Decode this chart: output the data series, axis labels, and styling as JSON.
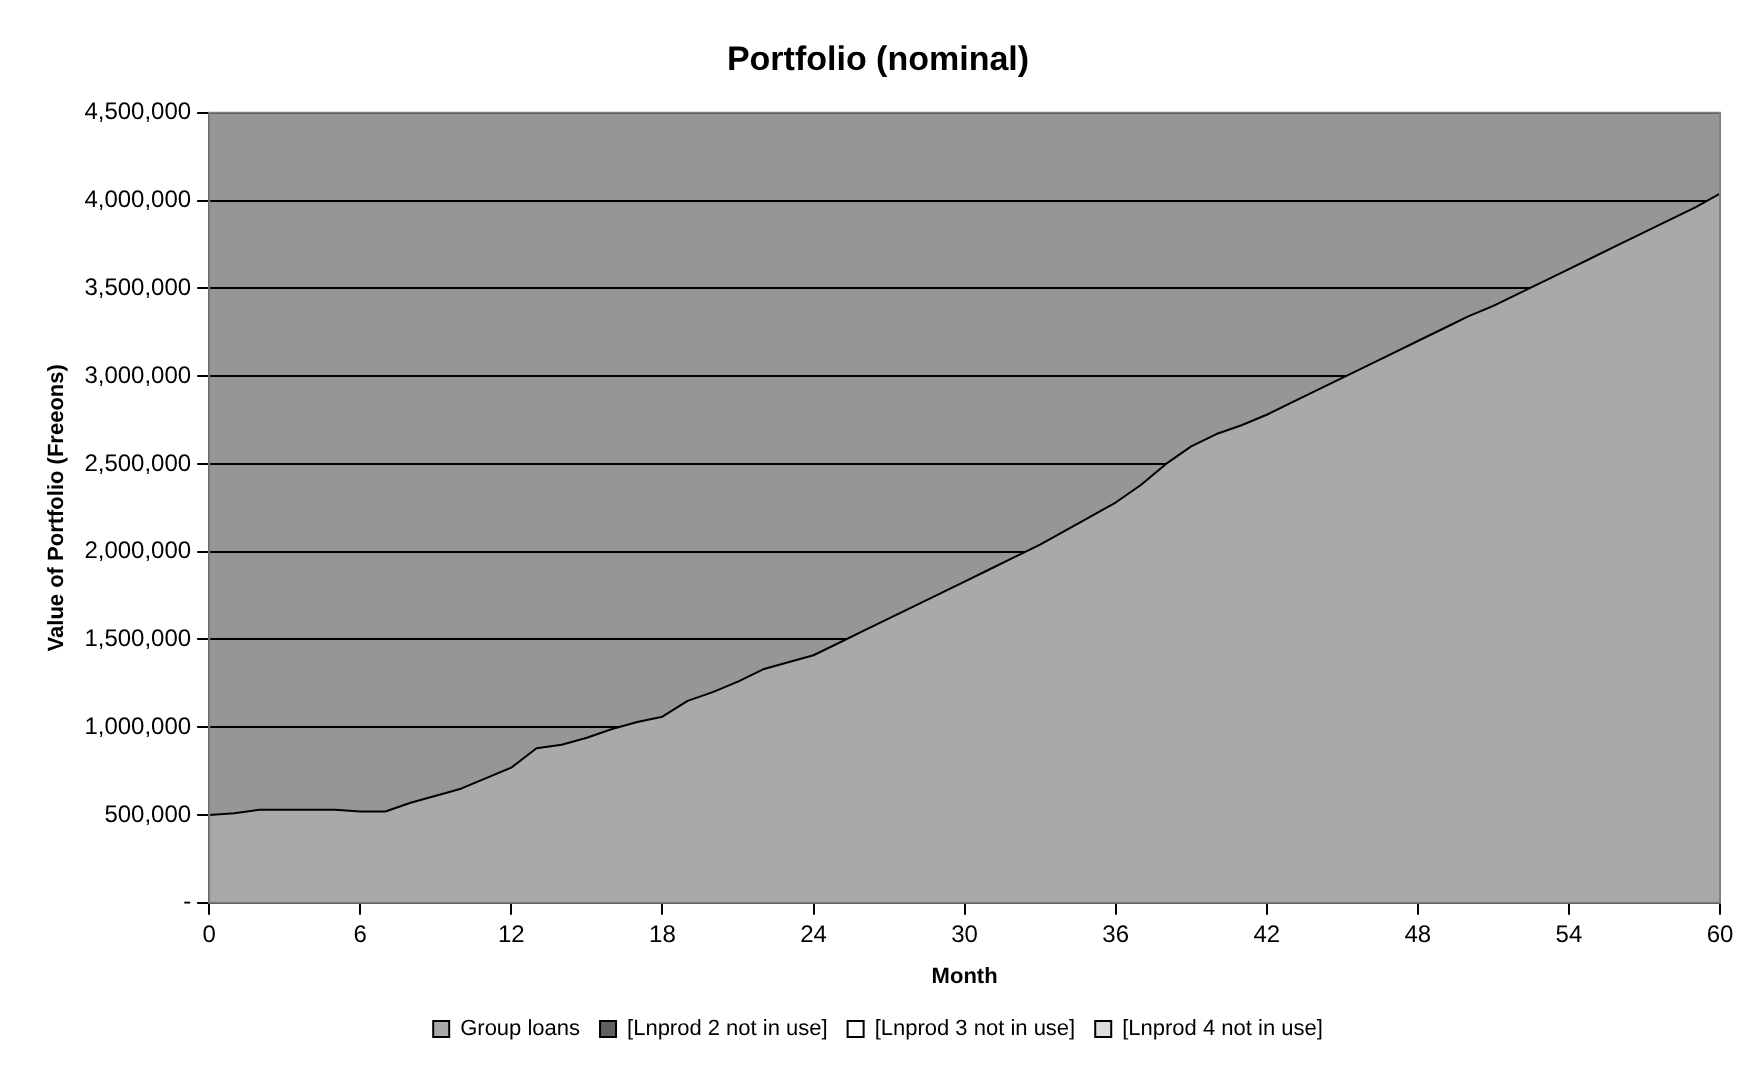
{
  "chart_data": {
    "type": "area",
    "title": "Portfolio (nominal)",
    "xlabel": "Month",
    "ylabel": "Value of Portfolio (Freeons)",
    "x": [
      0,
      1,
      2,
      3,
      4,
      5,
      6,
      7,
      8,
      9,
      10,
      11,
      12,
      13,
      14,
      15,
      16,
      17,
      18,
      19,
      20,
      21,
      22,
      23,
      24,
      25,
      26,
      27,
      28,
      29,
      30,
      31,
      32,
      33,
      34,
      35,
      36,
      37,
      38,
      39,
      40,
      41,
      42,
      43,
      44,
      45,
      46,
      47,
      48,
      49,
      50,
      51,
      52,
      53,
      54,
      55,
      56,
      57,
      58,
      59,
      60
    ],
    "series": [
      {
        "name": "Group loans",
        "color": "#a9a9a9",
        "values": [
          500000,
          510000,
          530000,
          530000,
          530000,
          530000,
          520000,
          520000,
          570000,
          610000,
          650000,
          710000,
          770000,
          880000,
          900000,
          940000,
          990000,
          1030000,
          1060000,
          1150000,
          1200000,
          1260000,
          1330000,
          1370000,
          1410000,
          1480000,
          1550000,
          1620000,
          1690000,
          1760000,
          1830000,
          1900000,
          1970000,
          2040000,
          2120000,
          2200000,
          2280000,
          2380000,
          2500000,
          2600000,
          2670000,
          2720000,
          2780000,
          2850000,
          2920000,
          2990000,
          3060000,
          3130000,
          3200000,
          3270000,
          3340000,
          3400000,
          3470000,
          3540000,
          3610000,
          3680000,
          3750000,
          3820000,
          3890000,
          3960000,
          4040000
        ]
      },
      {
        "name": "[Lnprod 2 not in use]",
        "color": "#5f5f5f",
        "values": [
          null,
          null,
          null,
          null,
          null,
          null,
          null,
          null,
          null,
          null,
          null,
          null,
          null,
          null,
          null,
          null,
          null,
          null,
          null,
          null,
          null,
          null,
          null,
          null,
          null,
          null,
          null,
          null,
          null,
          null,
          null,
          null,
          null,
          null,
          null,
          null,
          null,
          null,
          null,
          null,
          null,
          null,
          null,
          null,
          null,
          null,
          null,
          null,
          null,
          null,
          null,
          null,
          null,
          null,
          null,
          null,
          null,
          null,
          null,
          null,
          null
        ]
      },
      {
        "name": "[Lnprod 3 not in use]",
        "color": "#ffffff",
        "values": [
          null,
          null,
          null,
          null,
          null,
          null,
          null,
          null,
          null,
          null,
          null,
          null,
          null,
          null,
          null,
          null,
          null,
          null,
          null,
          null,
          null,
          null,
          null,
          null,
          null,
          null,
          null,
          null,
          null,
          null,
          null,
          null,
          null,
          null,
          null,
          null,
          null,
          null,
          null,
          null,
          null,
          null,
          null,
          null,
          null,
          null,
          null,
          null,
          null,
          null,
          null,
          null,
          null,
          null,
          null,
          null,
          null,
          null,
          null,
          null,
          null
        ]
      },
      {
        "name": "[Lnprod 4 not in use]",
        "color": "#dddddd",
        "values": [
          null,
          null,
          null,
          null,
          null,
          null,
          null,
          null,
          null,
          null,
          null,
          null,
          null,
          null,
          null,
          null,
          null,
          null,
          null,
          null,
          null,
          null,
          null,
          null,
          null,
          null,
          null,
          null,
          null,
          null,
          null,
          null,
          null,
          null,
          null,
          null,
          null,
          null,
          null,
          null,
          null,
          null,
          null,
          null,
          null,
          null,
          null,
          null,
          null,
          null,
          null,
          null,
          null,
          null,
          null,
          null,
          null,
          null,
          null,
          null,
          null
        ]
      }
    ],
    "xlim": [
      0,
      60
    ],
    "xticks": [
      0,
      6,
      12,
      18,
      24,
      30,
      36,
      42,
      48,
      54,
      60
    ],
    "ylim": [
      0,
      4500000
    ],
    "yticks": [
      {
        "value": 0,
        "label": "-"
      },
      {
        "value": 500000,
        "label": "500,000"
      },
      {
        "value": 1000000,
        "label": "1,000,000"
      },
      {
        "value": 1500000,
        "label": "1,500,000"
      },
      {
        "value": 2000000,
        "label": "2,000,000"
      },
      {
        "value": 2500000,
        "label": "2,500,000"
      },
      {
        "value": 3000000,
        "label": "3,000,000"
      },
      {
        "value": 3500000,
        "label": "3,500,000"
      },
      {
        "value": 4000000,
        "label": "4,000,000"
      },
      {
        "value": 4500000,
        "label": "4,500,000"
      }
    ],
    "grid": "y",
    "legend": "bottom"
  }
}
